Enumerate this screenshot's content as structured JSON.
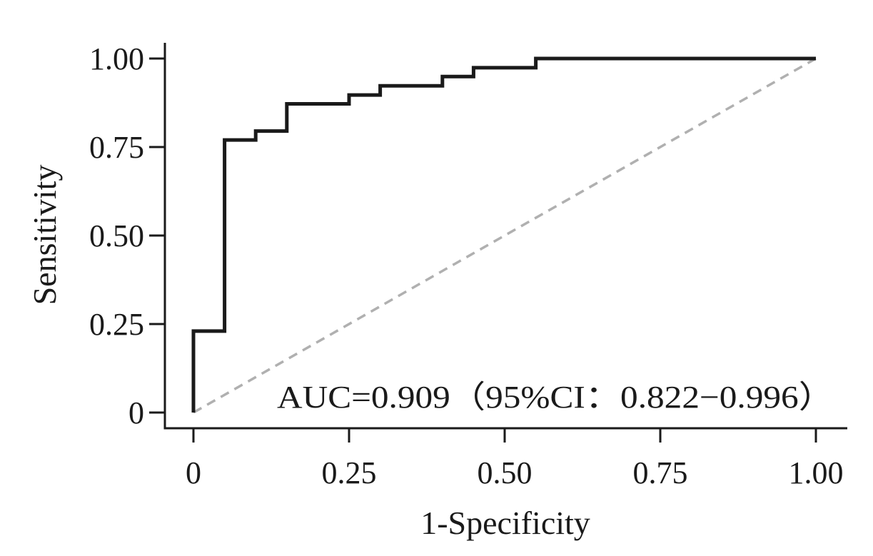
{
  "chart_data": {
    "type": "line",
    "title": "",
    "xlabel": "1-Specificity",
    "ylabel": "Sensitivity",
    "xlim": [
      0,
      1
    ],
    "ylim": [
      0,
      1
    ],
    "x_ticks": [
      0,
      0.25,
      0.5,
      0.75,
      1.0
    ],
    "x_tick_labels": [
      "0",
      "0.25",
      "0.50",
      "0.75",
      "1.00"
    ],
    "y_ticks": [
      0,
      0.25,
      0.5,
      0.75,
      1.0
    ],
    "y_tick_labels": [
      "0",
      "0.25",
      "0.50",
      "0.75",
      "1.00"
    ],
    "grid": false,
    "annotation": "AUC=0.909（95%CI：0.822−0.996）",
    "series": [
      {
        "style": "solid",
        "color": "#1a1a1a",
        "x": [
          0,
          0,
          0.05,
          0.05,
          0.1,
          0.1,
          0.15,
          0.15,
          0.25,
          0.25,
          0.3,
          0.3,
          0.4,
          0.4,
          0.45,
          0.45,
          0.55,
          0.55,
          1.0
        ],
        "y": [
          0,
          0.23,
          0.23,
          0.77,
          0.77,
          0.795,
          0.795,
          0.872,
          0.872,
          0.897,
          0.897,
          0.923,
          0.923,
          0.949,
          0.949,
          0.974,
          0.974,
          1.0,
          1.0
        ]
      },
      {
        "style": "dashed",
        "color": "#b0b0b0",
        "x": [
          0,
          1
        ],
        "y": [
          0,
          1
        ]
      }
    ]
  }
}
